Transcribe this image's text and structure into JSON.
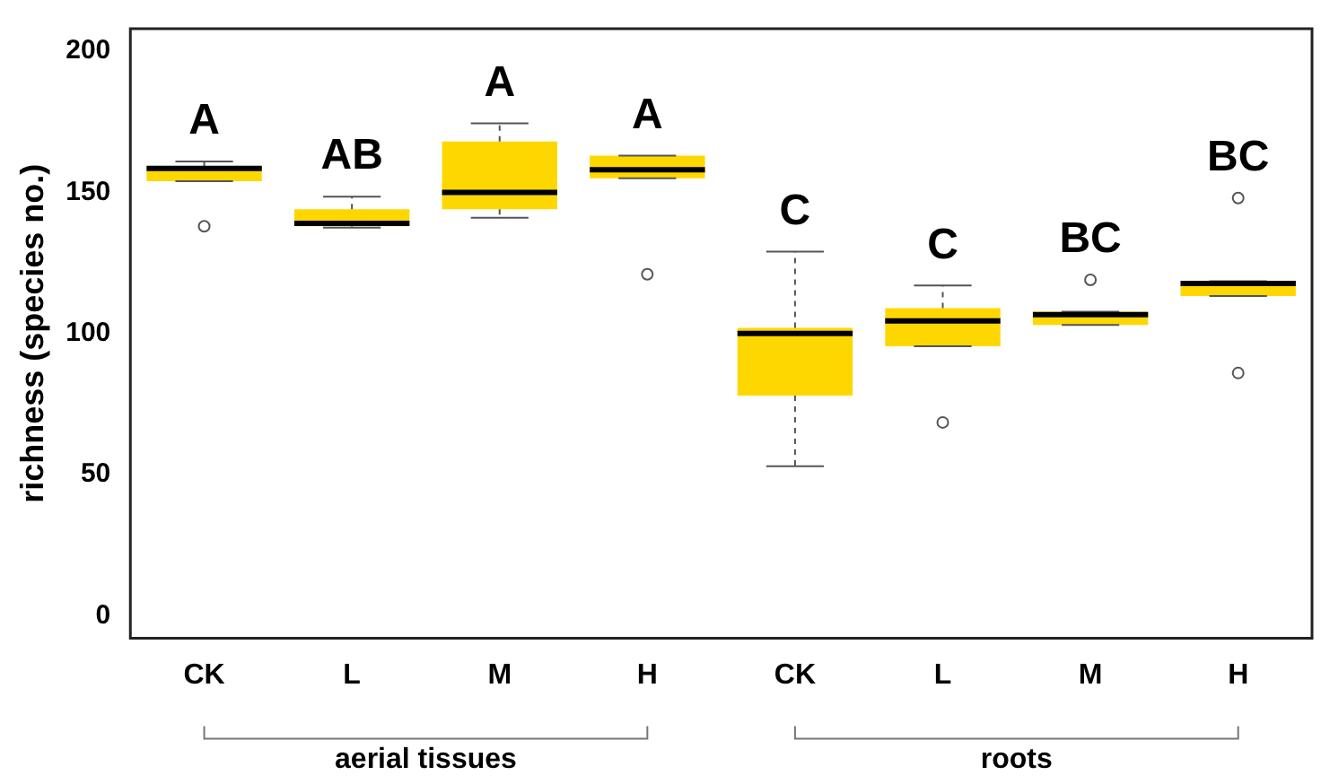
{
  "chart_data": {
    "type": "box",
    "ylabel": "richness (species no.)",
    "categories": [
      "CK",
      "L",
      "M",
      "H",
      "CK",
      "L",
      "M",
      "H"
    ],
    "color": "#ffd700",
    "boxes": [
      {
        "low": 154,
        "q1": 154,
        "median": 158.5,
        "q3": 159,
        "high": 161,
        "outliers": [
          138
        ]
      },
      {
        "low": 137.5,
        "q1": 138,
        "median": 139,
        "q3": 144,
        "high": 148.5
      },
      {
        "low": 141,
        "q1": 144,
        "median": 150,
        "q3": 168,
        "high": 174.5
      },
      {
        "low": 155,
        "q1": 155,
        "median": 158,
        "q3": 163,
        "high": 163,
        "outliers": [
          121
        ]
      },
      {
        "low": 53,
        "q1": 78,
        "median": 100,
        "q3": 102,
        "high": 129
      },
      {
        "low": 95.5,
        "q1": 95.5,
        "median": 104.5,
        "q3": 109,
        "high": 117,
        "outliers": [
          68.5
        ]
      },
      {
        "low": 103,
        "q1": 103,
        "median": 106.7,
        "q3": 107.7,
        "high": 107.7,
        "outliers": [
          119
        ]
      },
      {
        "low": 113.3,
        "q1": 113.3,
        "median": 117.7,
        "q3": 118.5,
        "high": 118.5,
        "outliers": [
          148,
          86
        ]
      }
    ],
    "annotations": [
      "A",
      "AB",
      "A",
      "A",
      "C",
      "C",
      "BC",
      "BC",
      "aerial tissues",
      "roots"
    ],
    "ylim": [
      -8,
      208
    ],
    "yticks": [
      0,
      50,
      100,
      150,
      200
    ],
    "grid": false,
    "legend": false
  }
}
